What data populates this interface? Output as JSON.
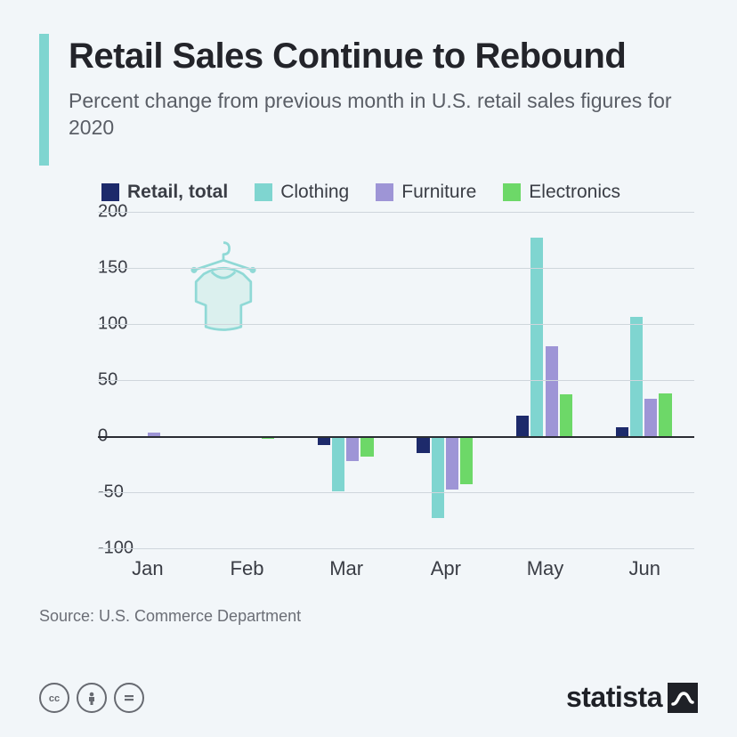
{
  "title": "Retail Sales Continue to Rebound",
  "subtitle": "Percent change from previous month in U.S. retail sales figures for 2020",
  "source": "Source: U.S. Commerce Department",
  "brand": "statista",
  "chart": {
    "type": "bar",
    "background_color": "#f2f6f9",
    "accent_color": "#7fd5d0",
    "grid_color": "#cfd6dc",
    "axis_color": "#2a2c33",
    "text_color": "#3a3d45",
    "ylim": [
      -100,
      200
    ],
    "ytick_step": 50,
    "yticks": [
      -100,
      -50,
      0,
      50,
      100,
      150,
      200
    ],
    "categories": [
      "Jan",
      "Feb",
      "Mar",
      "Apr",
      "May",
      "Jun"
    ],
    "series": [
      {
        "name": "Retail, total",
        "color": "#1d2a6b",
        "bold": true,
        "values": [
          0,
          0,
          -8,
          -15,
          18,
          8
        ]
      },
      {
        "name": "Clothing",
        "color": "#7fd5d0",
        "bold": false,
        "values": [
          0,
          -1,
          -49,
          -73,
          177,
          106
        ]
      },
      {
        "name": "Furniture",
        "color": "#9e95d6",
        "bold": false,
        "values": [
          3,
          0,
          -22,
          -48,
          80,
          33
        ]
      },
      {
        "name": "Electronics",
        "color": "#6dd868",
        "bold": false,
        "values": [
          0,
          -2,
          -18,
          -43,
          37,
          38
        ]
      }
    ],
    "bar_width_ratio": 0.58,
    "label_fontsize": 22,
    "tick_fontsize": 20
  },
  "icons": {
    "hanger_stroke": "#7fd5d0",
    "hanger_fill": "#d8efed"
  },
  "cc": [
    "cc",
    "by",
    "nd"
  ]
}
